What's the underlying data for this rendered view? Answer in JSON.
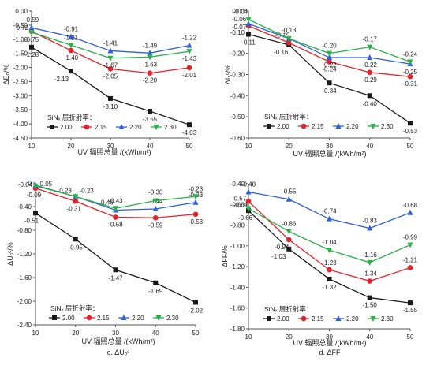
{
  "legend_title": "SiNₓ 层折射率：",
  "legend_labels": [
    "2.00",
    "2.15",
    "2.20",
    "2.30"
  ],
  "series_colors": [
    "#1a1a1a",
    "#e8202a",
    "#2f5fd6",
    "#2bb04a"
  ],
  "series_markers": [
    "square",
    "circle",
    "triangle",
    "triangle-down"
  ],
  "chart_data": [
    {
      "type": "line",
      "subtitle": "",
      "xlabel": "UV 辐照总量 /(kWh/m²)",
      "ylabel": "ΔEₒ/%",
      "x": [
        10,
        20,
        30,
        40,
        50
      ],
      "xlim": [
        10,
        50
      ],
      "ylim": [
        -4.5,
        0
      ],
      "yticks": [
        "0.00",
        "-0.50",
        "-1.00",
        "-1.50",
        "-2.00",
        "-2.50",
        "-3.00",
        "-3.50",
        "-4.00",
        "-4.50"
      ],
      "grid": false,
      "legend": "bottom-left",
      "series": [
        {
          "name": "2.00",
          "values": [
            -1.28,
            -2.13,
            -3.1,
            -3.55,
            -4.03
          ],
          "labels": [
            "-1.28",
            "-2.13",
            "-3.10",
            "-3.55",
            "-4.03"
          ]
        },
        {
          "name": "2.15",
          "values": [
            -0.72,
            -1.4,
            -2.05,
            -2.2,
            -2.01
          ],
          "labels": [
            "-0.72",
            "-1.40",
            "-2.05",
            "-2.20",
            "-2.01"
          ]
        },
        {
          "name": "2.20",
          "values": [
            -0.59,
            -0.91,
            -1.41,
            -1.49,
            -1.22
          ],
          "labels": [
            "-0.59",
            "-0.91",
            "-1.41",
            "-1.49",
            "-1.22"
          ]
        },
        {
          "name": "2.30",
          "values": [
            -0.75,
            -1.21,
            -1.67,
            -1.63,
            -1.43
          ],
          "labels": [
            "-0.75",
            "-1.21",
            "-1.67",
            "-1.63",
            "-1.43"
          ]
        }
      ]
    },
    {
      "type": "line",
      "subtitle": "",
      "xlabel": "UV 辐照总量 /(kWh/m²)",
      "ylabel": "ΔIₛᶜ/%",
      "x": [
        10,
        20,
        30,
        40,
        50
      ],
      "xlim": [
        10,
        50
      ],
      "ylim": [
        -0.6,
        0
      ],
      "yticks": [
        "0.00",
        "-0.10",
        "-0.20",
        "-0.30",
        "-0.40",
        "-0.50",
        "-0.60"
      ],
      "grid": false,
      "legend": "bottom-left",
      "series": [
        {
          "name": "2.00",
          "values": [
            -0.11,
            -0.16,
            -0.34,
            -0.4,
            -0.53
          ],
          "labels": [
            "-0.11",
            "-0.16",
            "-0.34",
            "-0.40",
            "-0.53"
          ]
        },
        {
          "name": "2.15",
          "values": [
            -0.07,
            -0.15,
            -0.24,
            -0.29,
            -0.31
          ],
          "labels": [
            "-0.07",
            "-0.15",
            "-0.24",
            "-0.29",
            "-0.31"
          ]
        },
        {
          "name": "2.20",
          "values": [
            -0.06,
            -0.13,
            -0.22,
            -0.22,
            -0.25
          ],
          "labels": [
            "-0.06",
            "",
            "-0.22",
            "-0.22",
            "-0.25"
          ]
        },
        {
          "name": "2.30",
          "values": [
            -0.04,
            -0.13,
            -0.2,
            -0.17,
            -0.24
          ],
          "labels": [
            "-0.04",
            "-0.13",
            "-0.20",
            "-0.17",
            "-0.24"
          ]
        }
      ]
    },
    {
      "type": "line",
      "subtitle": "c. ΔUₒᶜ",
      "xlabel": "UV 辐照总量 /(kWh/m²)",
      "ylabel": "ΔUₒᶜ/%",
      "x": [
        10,
        20,
        30,
        40,
        50
      ],
      "xlim": [
        10,
        50
      ],
      "ylim": [
        -2.4,
        0
      ],
      "yticks": [
        "0",
        "-0.40",
        "-0.80",
        "-1.20",
        "-1.60",
        "-2.00",
        "-2.40"
      ],
      "grid": false,
      "legend": "bottom-left",
      "series": [
        {
          "name": "2.00",
          "values": [
            -0.51,
            -0.95,
            -1.47,
            -1.69,
            -2.02
          ],
          "labels": [
            "-0.51",
            "-0.95",
            "-1.47",
            "-1.69",
            "-2.02"
          ]
        },
        {
          "name": "2.15",
          "values": [
            -0.09,
            -0.31,
            -0.58,
            -0.59,
            -0.53
          ],
          "labels": [
            "-0.09",
            "-0.31",
            "-0.58",
            "-0.59",
            "-0.53"
          ]
        },
        {
          "name": "2.20",
          "values": [
            -0.04,
            -0.23,
            -0.46,
            -0.44,
            -0.33
          ],
          "labels": [
            "-0.04",
            "-0.23",
            "-0.46",
            "-0.44",
            "-0.33"
          ]
        },
        {
          "name": "2.30",
          "values": [
            -0.05,
            -0.23,
            -0.43,
            -0.3,
            -0.23
          ],
          "labels": [
            "-0.05",
            "-0.23",
            "-0.43",
            "-0.30",
            "-0.23"
          ]
        }
      ]
    },
    {
      "type": "line",
      "subtitle": "d. ΔFF",
      "xlabel": "UV 辐照总量 /(kWh/m²)",
      "ylabel": "ΔFF/%",
      "x": [
        10,
        20,
        30,
        40,
        50
      ],
      "xlim": [
        10,
        50
      ],
      "ylim": [
        -1.8,
        -0.4
      ],
      "yticks": [
        "-0.40",
        "-0.60",
        "-0.80",
        "-1.00",
        "-1.20",
        "-1.40",
        "-1.60",
        "-1.80"
      ],
      "grid": false,
      "legend": "bottom-left",
      "series": [
        {
          "name": "2.00",
          "values": [
            -0.66,
            -1.03,
            -1.32,
            -1.5,
            -1.55
          ],
          "labels": [
            "-0.66",
            "-1.03",
            "-1.32",
            "-1.50",
            "-1.55"
          ]
        },
        {
          "name": "2.15",
          "values": [
            -0.57,
            -0.94,
            -1.23,
            -1.34,
            -1.21
          ],
          "labels": [
            "-0.57",
            "-0.94",
            "-1.23",
            "-1.34",
            "-1.21"
          ]
        },
        {
          "name": "2.20",
          "values": [
            -0.48,
            -0.55,
            -0.74,
            -0.83,
            -0.68
          ],
          "labels": [
            "-0.48",
            "-0.55",
            "-0.74",
            "-0.83",
            "-0.68"
          ]
        },
        {
          "name": "2.30",
          "values": [
            -0.64,
            -0.86,
            -1.04,
            -1.16,
            -0.99
          ],
          "labels": [
            "-0.64",
            "-0.86",
            "-1.04",
            "-1.16",
            "-0.99"
          ]
        }
      ]
    }
  ]
}
